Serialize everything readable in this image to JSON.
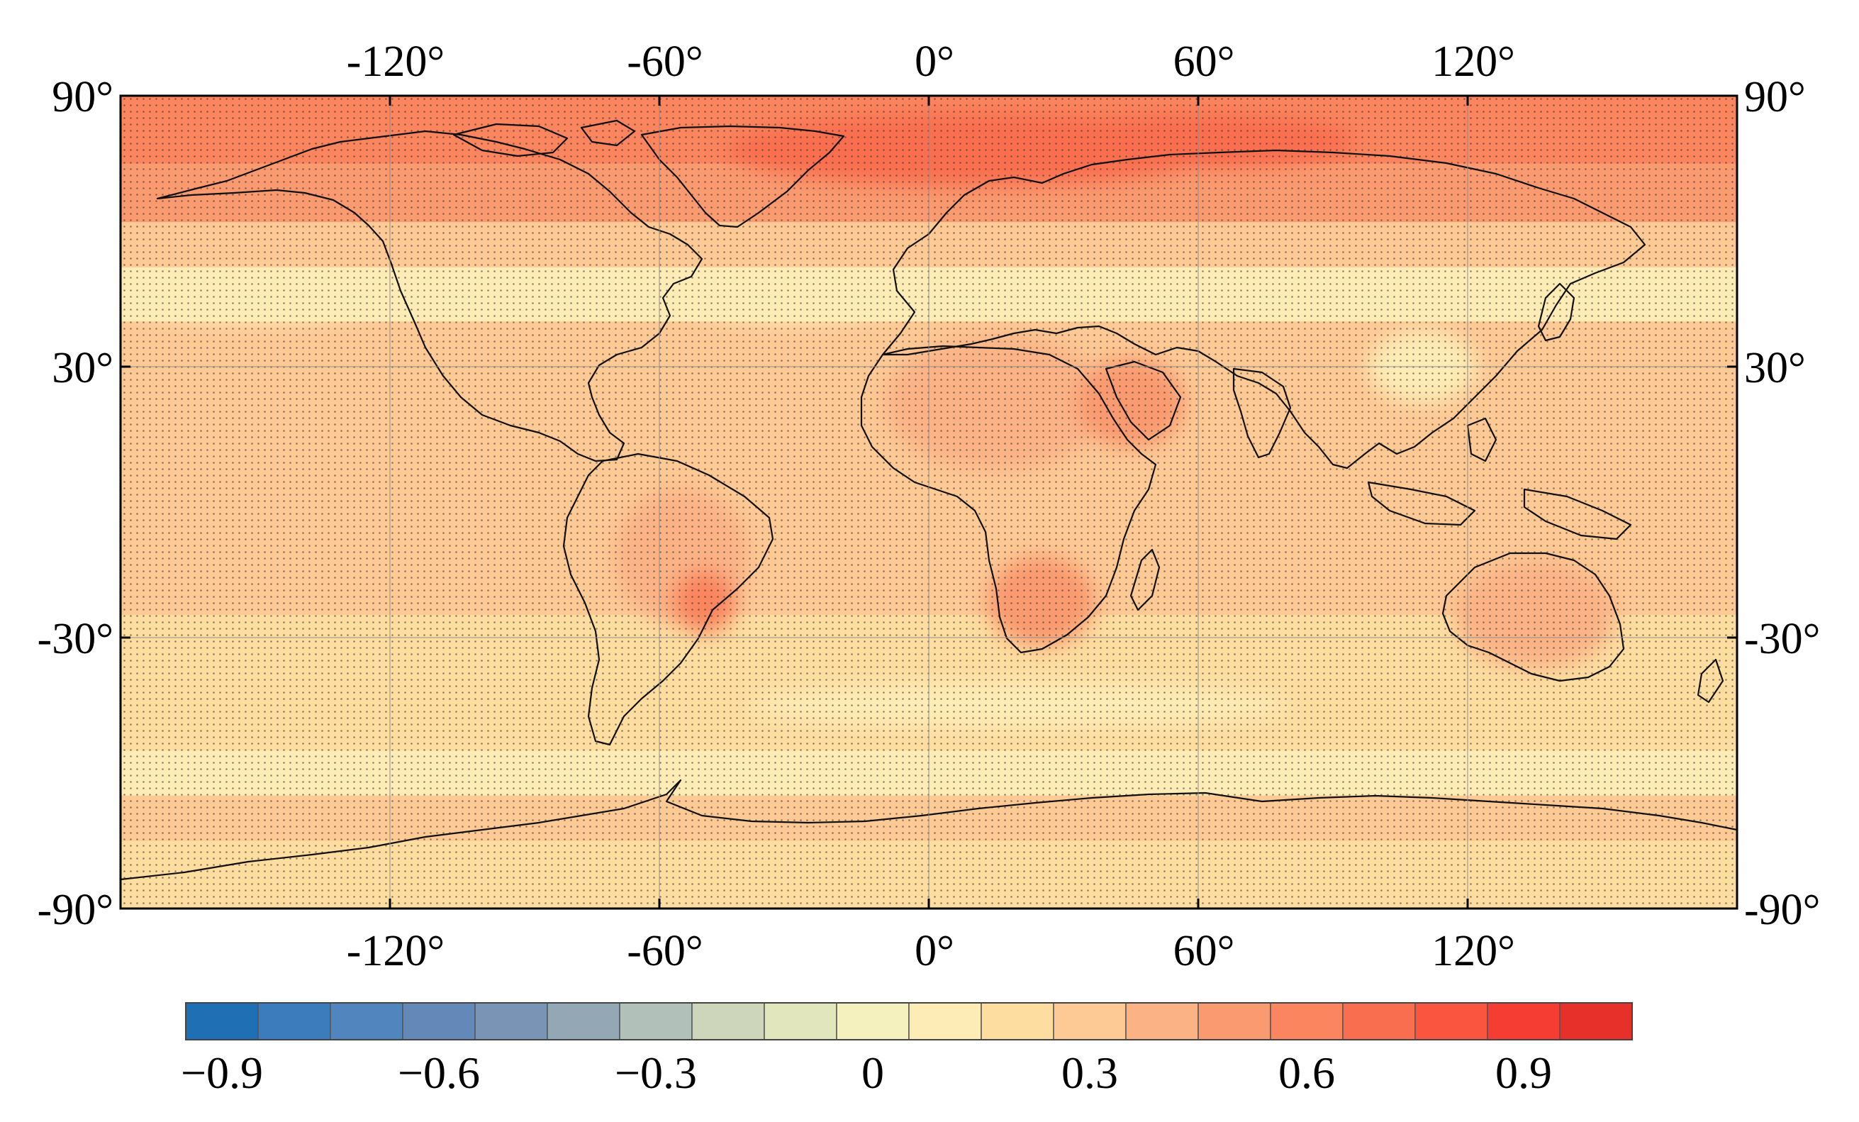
{
  "map": {
    "projection": "equirectangular",
    "lon_range": [
      -180,
      180
    ],
    "lat_range": [
      -90,
      90
    ],
    "graticule": true,
    "stippling": "dots over most of the map",
    "x_ticks_top": [
      "-120°",
      "-60°",
      "0°",
      "60°",
      "120°"
    ],
    "x_ticks_bottom": [
      "-120°",
      "-60°",
      "0°",
      "60°",
      "120°"
    ],
    "x_tick_values": [
      -120,
      -60,
      0,
      60,
      120
    ],
    "y_ticks_left": [
      "90°",
      "30°",
      "-30°",
      "-90°"
    ],
    "y_ticks_right": [
      "90°",
      "30°",
      "-30°",
      "-90°"
    ],
    "y_tick_values": [
      90,
      30,
      -30,
      -90
    ],
    "field_bands": [
      {
        "lat_from": 90,
        "lat_to": 75,
        "value": 0.55
      },
      {
        "lat_from": 75,
        "lat_to": 62,
        "value": 0.45
      },
      {
        "lat_from": 62,
        "lat_to": 52,
        "value": 0.3
      },
      {
        "lat_from": 52,
        "lat_to": 40,
        "value": 0.15
      },
      {
        "lat_from": 40,
        "lat_to": 30,
        "value": 0.25
      },
      {
        "lat_from": 30,
        "lat_to": 10,
        "value": 0.3
      },
      {
        "lat_from": 10,
        "lat_to": -10,
        "value": 0.3
      },
      {
        "lat_from": -10,
        "lat_to": -25,
        "value": 0.25
      },
      {
        "lat_from": -25,
        "lat_to": -40,
        "value": 0.2
      },
      {
        "lat_from": -40,
        "lat_to": -55,
        "value": 0.2
      },
      {
        "lat_from": -55,
        "lat_to": -65,
        "value": 0.15
      },
      {
        "lat_from": -65,
        "lat_to": -75,
        "value": 0.35
      },
      {
        "lat_from": -75,
        "lat_to": -90,
        "value": 0.2
      }
    ],
    "field_patches": [
      {
        "lon": 10,
        "lat": 78,
        "rlon": 55,
        "rlat": 8,
        "value": 0.7
      },
      {
        "lon": 60,
        "lat": 80,
        "rlon": 35,
        "rlat": 6,
        "value": 0.65
      },
      {
        "lon": 15,
        "lat": 22,
        "rlon": 25,
        "rlat": 15,
        "value": 0.4
      },
      {
        "lon": 45,
        "lat": 22,
        "rlon": 12,
        "rlat": 10,
        "value": 0.45
      },
      {
        "lon": -55,
        "lat": -12,
        "rlon": 15,
        "rlat": 15,
        "value": 0.4
      },
      {
        "lon": -50,
        "lat": -22,
        "rlon": 7,
        "rlat": 7,
        "value": 0.55
      },
      {
        "lon": 25,
        "lat": -22,
        "rlon": 12,
        "rlat": 10,
        "value": 0.45
      },
      {
        "lon": 135,
        "lat": -25,
        "rlon": 18,
        "rlat": 12,
        "value": 0.4
      },
      {
        "lon": 110,
        "lat": 30,
        "rlon": 12,
        "rlat": 8,
        "value": 0.05
      },
      {
        "lon": -30,
        "lat": 45,
        "rlon": 25,
        "rlat": 5,
        "value": 0.1
      },
      {
        "lon": -150,
        "lat": 45,
        "rlon": 30,
        "rlat": 5,
        "value": 0.15
      },
      {
        "lon": 120,
        "lat": 5,
        "rlon": 15,
        "rlat": 10,
        "value": 0.35
      },
      {
        "lon": 20,
        "lat": -45,
        "rlon": 60,
        "rlat": 5,
        "value": 0.15
      }
    ]
  },
  "colorbar": {
    "levels": [
      -0.9,
      -0.8,
      -0.7,
      -0.6,
      -0.5,
      -0.4,
      -0.3,
      -0.2,
      -0.1,
      0,
      0.1,
      0.2,
      0.3,
      0.4,
      0.5,
      0.6,
      0.7,
      0.8,
      0.9,
      1.0
    ],
    "colors": [
      "#1f6fb4",
      "#3c7cbc",
      "#5185bd",
      "#6489b9",
      "#7a94b6",
      "#93a7b4",
      "#b1c0b8",
      "#cdd6ba",
      "#e2e6bd",
      "#f4f1be",
      "#fdecb6",
      "#fddda0",
      "#fdc995",
      "#fbb386",
      "#fa9a70",
      "#fa855f",
      "#f96e4f",
      "#f9553f",
      "#f63d34",
      "#e8302b"
    ],
    "tick_labels": [
      "−0.9",
      "−0.6",
      "−0.3",
      "0",
      "0.3",
      "0.6",
      "0.9"
    ],
    "tick_values": [
      -0.9,
      -0.6,
      -0.3,
      0,
      0.3,
      0.6,
      0.9
    ]
  }
}
